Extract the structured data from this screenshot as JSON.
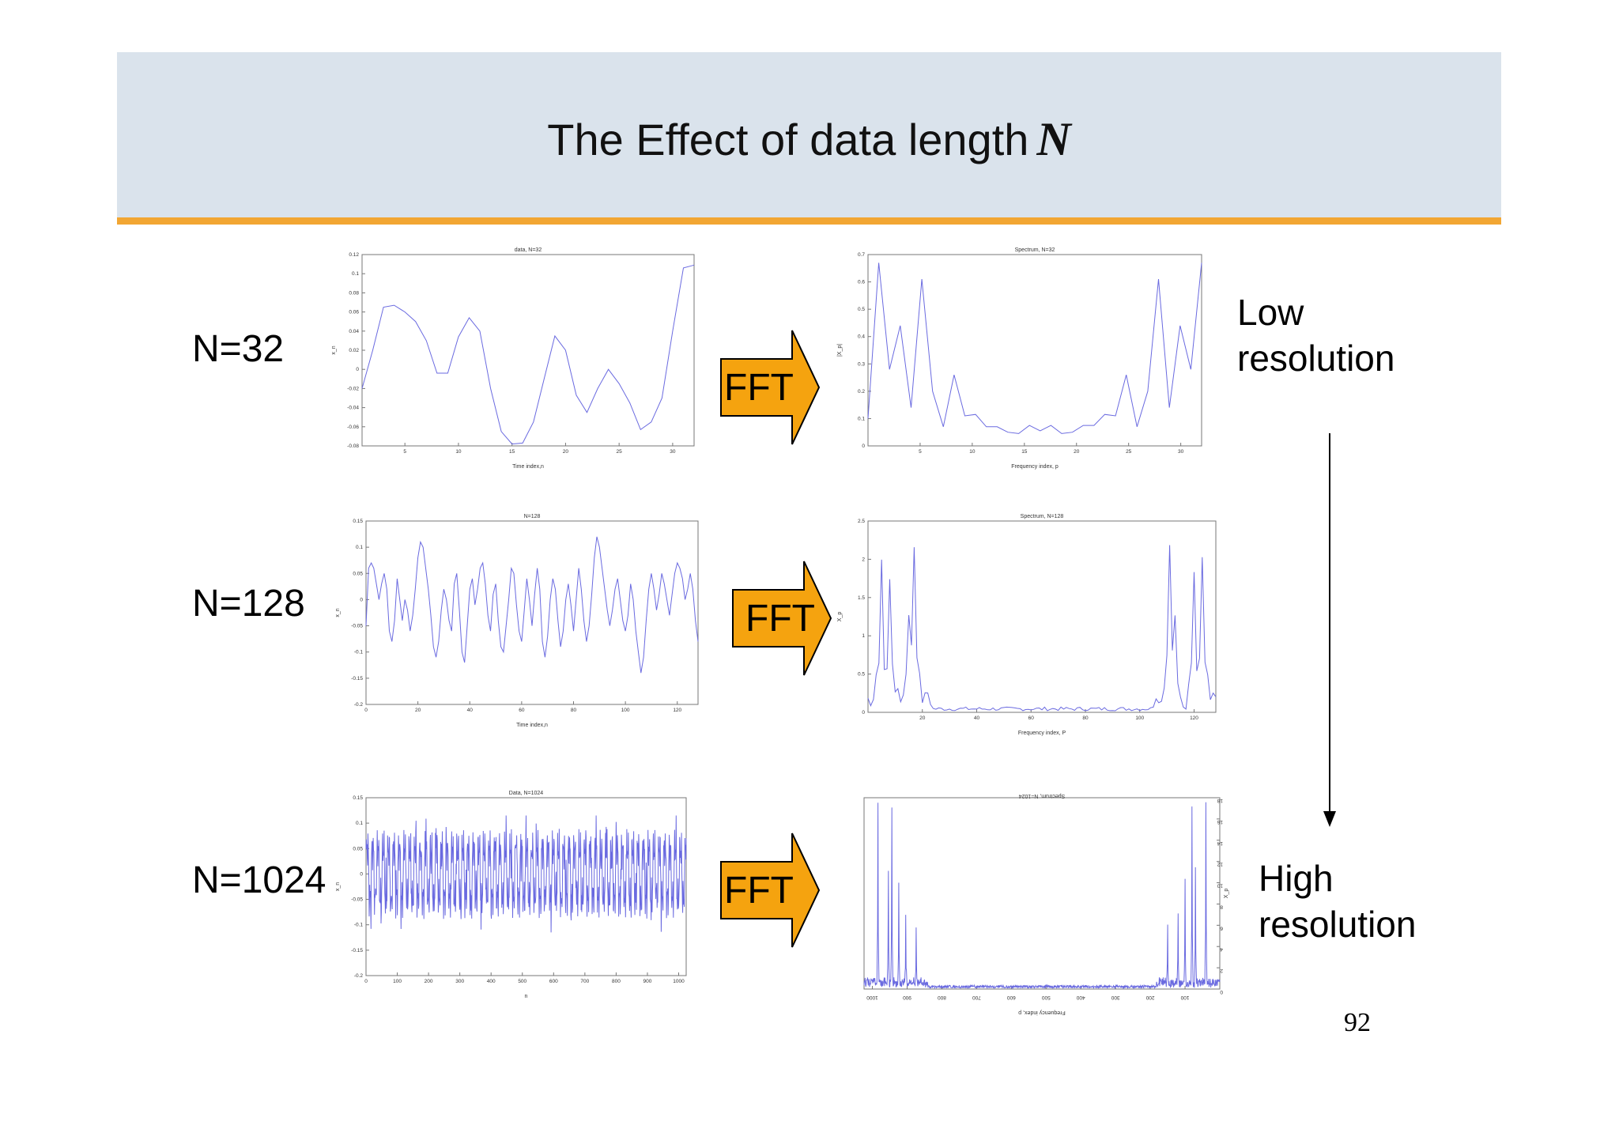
{
  "slide": {
    "title": "The Effect of data length",
    "title_symbol": "N",
    "page_number": "92",
    "header_color": "#dae3ec",
    "rule_color": "#f2a633",
    "arrow_color": "#f5a30f"
  },
  "rows": [
    {
      "label": "N=32",
      "arrow": "FFT"
    },
    {
      "label": "N=128",
      "arrow": "FFT"
    },
    {
      "label": "N=1024",
      "arrow": "FFT"
    }
  ],
  "annotations": {
    "low_line1": "Low",
    "low_line2": "resolution",
    "high_line1": "High",
    "high_line2": "resolution"
  },
  "chart_data": [
    {
      "type": "line",
      "title": "data, N=32",
      "xlabel": "Time index,n",
      "ylabel": "x_n",
      "xlim": [
        1,
        32
      ],
      "ylim": [
        -0.08,
        0.12
      ],
      "xticks": [
        "5",
        "10",
        "15",
        "20",
        "25",
        "30"
      ],
      "yticks": [
        "0.12",
        "0.1",
        "0.08",
        "0.06",
        "0.04",
        "0.02",
        "0",
        "-0.02",
        "-0.04",
        "-0.06",
        "-0.08"
      ],
      "y": [
        -0.02,
        0.02,
        0.065,
        0.067,
        0.06,
        0.05,
        0.03,
        -0.004,
        -0.004,
        0.034,
        0.054,
        0.04,
        -0.02,
        -0.065,
        -0.078,
        -0.077,
        -0.055,
        -0.01,
        0.035,
        0.02,
        -0.027,
        -0.045,
        -0.02,
        0.0,
        -0.015,
        -0.035,
        -0.063,
        -0.055,
        -0.03,
        0.04,
        0.106,
        0.109
      ]
    },
    {
      "type": "line",
      "title": "Spectrum, N=32",
      "xlabel": "Frequency index, p",
      "ylabel": "|X_p|",
      "xlim": [
        0,
        32
      ],
      "ylim": [
        0,
        0.7
      ],
      "xticks": [
        "5",
        "10",
        "15",
        "20",
        "25",
        "30"
      ],
      "yticks": [
        "0.7",
        "0.6",
        "0.5",
        "0.4",
        "0.3",
        "0.2",
        "0.1",
        "0"
      ],
      "y": [
        0.1,
        0.67,
        0.28,
        0.44,
        0.14,
        0.61,
        0.2,
        0.07,
        0.26,
        0.11,
        0.115,
        0.07,
        0.07,
        0.05,
        0.045,
        0.075,
        0.055,
        0.075,
        0.045,
        0.05,
        0.075,
        0.075,
        0.115,
        0.11,
        0.26,
        0.07,
        0.2,
        0.61,
        0.14,
        0.44,
        0.28,
        0.67
      ]
    },
    {
      "type": "line",
      "title": "N=128",
      "xlabel": "Time index,n",
      "ylabel": "x_n",
      "xlim": [
        0,
        128
      ],
      "ylim": [
        -0.2,
        0.15
      ],
      "xticks": [
        "0",
        "20",
        "40",
        "60",
        "80",
        "100",
        "120"
      ],
      "yticks": [
        "0.15",
        "0.1",
        "0.05",
        "0",
        "-0.05",
        "-0.1",
        "-0.15",
        "-0.2"
      ],
      "y": [
        -0.05,
        0.06,
        0.07,
        0.06,
        0.03,
        0.0,
        0.03,
        0.05,
        0.02,
        -0.06,
        -0.08,
        -0.04,
        0.04,
        0.0,
        -0.04,
        0.0,
        -0.02,
        -0.06,
        -0.03,
        0.02,
        0.08,
        0.11,
        0.1,
        0.06,
        0.02,
        -0.03,
        -0.09,
        -0.11,
        -0.08,
        -0.02,
        0.02,
        0.0,
        -0.04,
        -0.06,
        0.03,
        0.05,
        -0.02,
        -0.1,
        -0.12,
        -0.05,
        0.02,
        0.04,
        -0.01,
        0.02,
        0.06,
        0.07,
        0.03,
        -0.03,
        -0.06,
        0.01,
        0.03,
        -0.04,
        -0.09,
        -0.1,
        -0.05,
        0.0,
        0.06,
        0.05,
        -0.01,
        -0.06,
        -0.08,
        -0.02,
        0.04,
        0.0,
        -0.05,
        0.01,
        0.06,
        0.02,
        -0.08,
        -0.11,
        -0.07,
        0.0,
        0.04,
        0.02,
        -0.04,
        -0.09,
        -0.06,
        0.0,
        0.03,
        -0.01,
        -0.06,
        0.0,
        0.06,
        0.02,
        -0.04,
        -0.08,
        -0.05,
        0.01,
        0.08,
        0.12,
        0.1,
        0.06,
        0.02,
        -0.02,
        -0.05,
        -0.02,
        0.02,
        0.04,
        0.0,
        -0.04,
        -0.06,
        -0.03,
        0.03,
        0.0,
        -0.06,
        -0.1,
        -0.14,
        -0.11,
        -0.04,
        0.02,
        0.05,
        0.02,
        -0.02,
        0.01,
        0.05,
        0.03,
        0.0,
        -0.03,
        0.01,
        0.05,
        0.07,
        0.06,
        0.04,
        0.0,
        0.02,
        0.05,
        0.02,
        -0.04,
        -0.08
      ]
    },
    {
      "type": "line",
      "title": "Spectrum, N=128",
      "xlabel": "Frequency index, P",
      "ylabel": "X_p",
      "xlim": [
        0,
        128
      ],
      "ylim": [
        0,
        2.5
      ],
      "xticks": [
        "20",
        "40",
        "60",
        "80",
        "100",
        "120"
      ],
      "yticks": [
        "2.5",
        "2",
        "1.5",
        "1",
        "0.5",
        "0"
      ],
      "peaks": [
        {
          "x": 5,
          "y": 1.8
        },
        {
          "x": 8,
          "y": 1.7
        },
        {
          "x": 15,
          "y": 1.2
        },
        {
          "x": 17,
          "y": 2.1
        },
        {
          "x": 111,
          "y": 2.1
        },
        {
          "x": 113,
          "y": 1.2
        },
        {
          "x": 120,
          "y": 1.7
        },
        {
          "x": 123,
          "y": 1.8
        }
      ]
    },
    {
      "type": "line",
      "title": "Data, N=1024",
      "xlabel": "n",
      "ylabel": "x_n",
      "xlim": [
        0,
        1024
      ],
      "ylim": [
        -0.2,
        0.15
      ],
      "xticks": [
        "0",
        "100",
        "200",
        "300",
        "400",
        "500",
        "600",
        "700",
        "800",
        "900",
        "1000"
      ],
      "yticks": [
        "0.15",
        "0.1",
        "0.05",
        "0",
        "-0.05",
        "-0.1",
        "-0.15",
        "-0.2"
      ],
      "amplitude_range": [
        -0.115,
        0.115
      ]
    },
    {
      "type": "line",
      "title": "Spectrum, N=1024",
      "xlabel": "Frequency index, p",
      "ylabel": "X_p",
      "xlim": [
        0,
        1024
      ],
      "ylim": [
        0,
        18
      ],
      "xticks": [
        "1000",
        "900",
        "800",
        "700",
        "600",
        "500",
        "400",
        "300",
        "200",
        "100"
      ],
      "yticks": [
        "18",
        "16",
        "14",
        "12",
        "10",
        "8",
        "6",
        "4",
        "2",
        "0"
      ],
      "mirrored": true,
      "peaks": [
        {
          "x": 40,
          "y": 17.5
        },
        {
          "x": 70,
          "y": 11
        },
        {
          "x": 80,
          "y": 16.5
        },
        {
          "x": 100,
          "y": 10
        },
        {
          "x": 120,
          "y": 6.5
        },
        {
          "x": 150,
          "y": 5.5
        },
        {
          "x": 874,
          "y": 5.5
        },
        {
          "x": 904,
          "y": 6.5
        },
        {
          "x": 924,
          "y": 10
        },
        {
          "x": 944,
          "y": 16.5
        },
        {
          "x": 954,
          "y": 11
        },
        {
          "x": 984,
          "y": 17.5
        }
      ]
    }
  ]
}
